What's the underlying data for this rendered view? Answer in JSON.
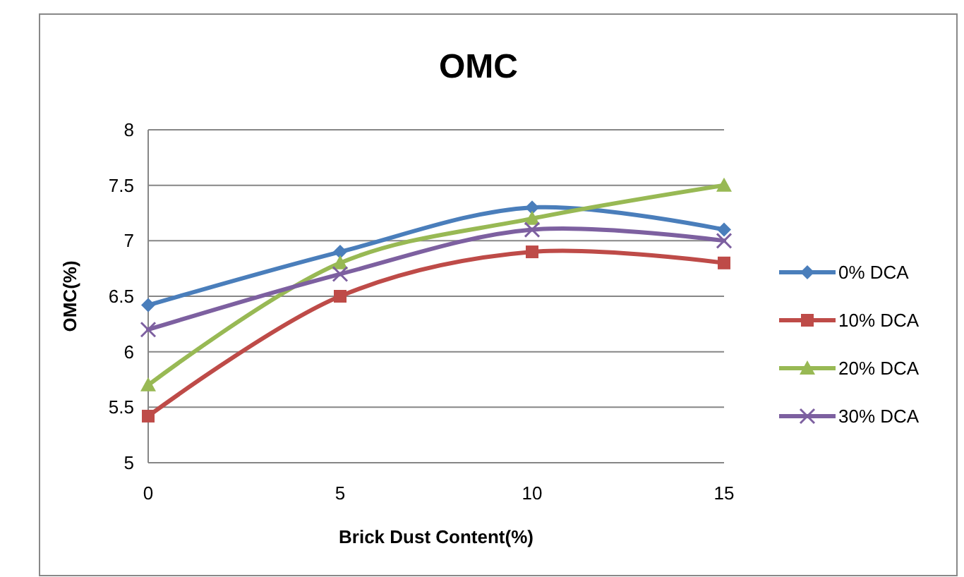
{
  "chart_data": {
    "type": "line",
    "title": "OMC",
    "xlabel": "Brick Dust Content(%)",
    "ylabel": "OMC(%)",
    "x": [
      0,
      5,
      10,
      15
    ],
    "xlim": [
      0,
      15
    ],
    "xticks": [
      0,
      5,
      10,
      15
    ],
    "ylim": [
      5,
      8
    ],
    "yticks": [
      5,
      5.5,
      6,
      6.5,
      7,
      7.5,
      8
    ],
    "grid": "y",
    "legend": "right",
    "line_style": "solid",
    "series": [
      {
        "name": "0% DCA",
        "color": "#4a7ebb",
        "marker": "diamond",
        "values": [
          6.42,
          6.9,
          7.3,
          7.1
        ]
      },
      {
        "name": "10% DCA",
        "color": "#be4b48",
        "marker": "square",
        "values": [
          5.42,
          6.5,
          6.9,
          6.8
        ]
      },
      {
        "name": "20% DCA",
        "color": "#98b954",
        "marker": "triangle",
        "values": [
          5.7,
          6.8,
          7.2,
          7.5
        ]
      },
      {
        "name": "30% DCA",
        "color": "#7d60a0",
        "marker": "cross",
        "values": [
          6.2,
          6.7,
          7.1,
          7.0
        ]
      }
    ]
  }
}
